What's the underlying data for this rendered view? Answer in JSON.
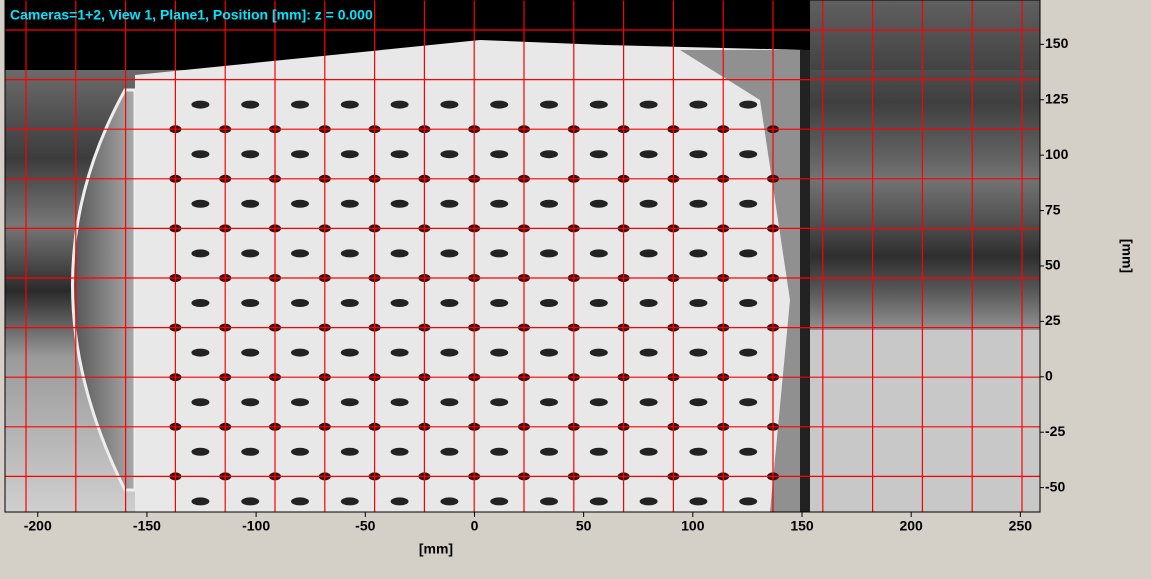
{
  "chart_data": {
    "type": "image",
    "title": "Cameras=1+2, View 1,  Plane1, Position [mm]: z = 0.000",
    "xlabel": "[mm]",
    "ylabel": "[mm]",
    "xlim": [
      -215,
      259
    ],
    "ylim": [
      -61,
      170
    ],
    "xticks": [
      -200,
      -150,
      -100,
      -50,
      0,
      50,
      100,
      150,
      200,
      250
    ],
    "yticks": [
      -50,
      -25,
      0,
      25,
      50,
      75,
      100,
      125,
      150
    ]
  }
}
